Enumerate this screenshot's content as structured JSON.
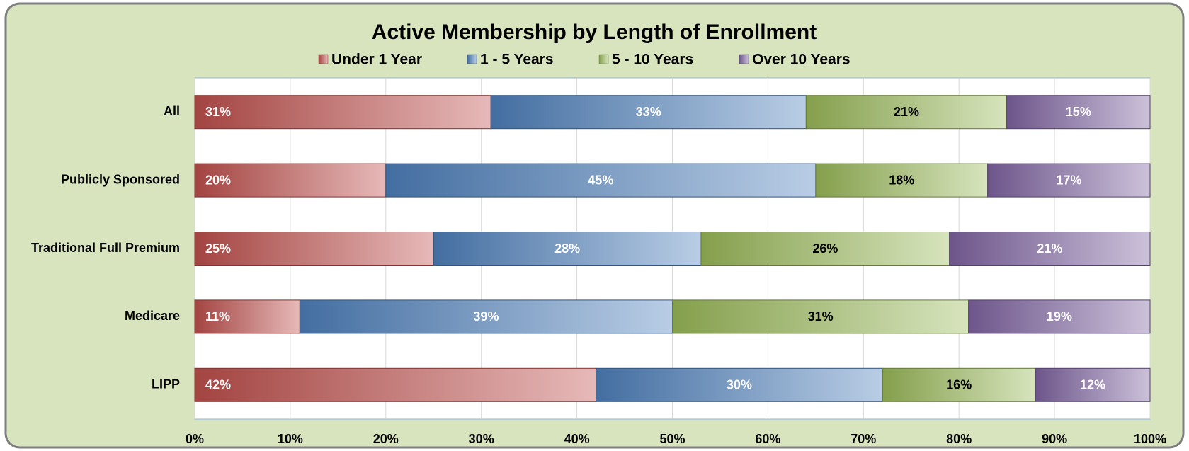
{
  "chart_data": {
    "type": "stacked-bar-horizontal",
    "title": "Active Membership by Length of Enrollment",
    "categories": [
      "All",
      "Publicly Sponsored",
      "Traditional Full Premium",
      "Medicare",
      "LIPP"
    ],
    "series": [
      {
        "name": "Under 1 Year",
        "color": "#c0504d",
        "label_color": "#ffffff",
        "values": [
          31,
          20,
          25,
          11,
          42
        ],
        "value_labels": [
          "31%",
          "20%",
          "25%",
          "11%",
          "42%"
        ]
      },
      {
        "name": "1 - 5 Years",
        "color": "#4f81bd",
        "label_color": "#ffffff",
        "values": [
          33,
          45,
          28,
          39,
          30
        ],
        "value_labels": [
          "33%",
          "45%",
          "28%",
          "39%",
          "30%"
        ]
      },
      {
        "name": "5 - 10 Years",
        "color": "#9bbb59",
        "label_color": "#000000",
        "values": [
          21,
          18,
          26,
          31,
          16
        ],
        "value_labels": [
          "21%",
          "18%",
          "26%",
          "31%",
          "16%"
        ]
      },
      {
        "name": "Over 10 Years",
        "color": "#8064a2",
        "label_color": "#ffffff",
        "values": [
          15,
          17,
          21,
          19,
          12
        ],
        "value_labels": [
          "15%",
          "17%",
          "21%",
          "19%",
          "12%"
        ]
      }
    ],
    "xlim": [
      0,
      100
    ],
    "xticks": [
      {
        "value": 0,
        "label": "0%"
      },
      {
        "value": 10,
        "label": "10%"
      },
      {
        "value": 20,
        "label": "20%"
      },
      {
        "value": 30,
        "label": "30%"
      },
      {
        "value": 40,
        "label": "40%"
      },
      {
        "value": 50,
        "label": "50%"
      },
      {
        "value": 60,
        "label": "60%"
      },
      {
        "value": 70,
        "label": "70%"
      },
      {
        "value": 80,
        "label": "80%"
      },
      {
        "value": 90,
        "label": "90%"
      },
      {
        "value": 100,
        "label": "100%"
      }
    ],
    "grid": true,
    "legend": "top"
  }
}
